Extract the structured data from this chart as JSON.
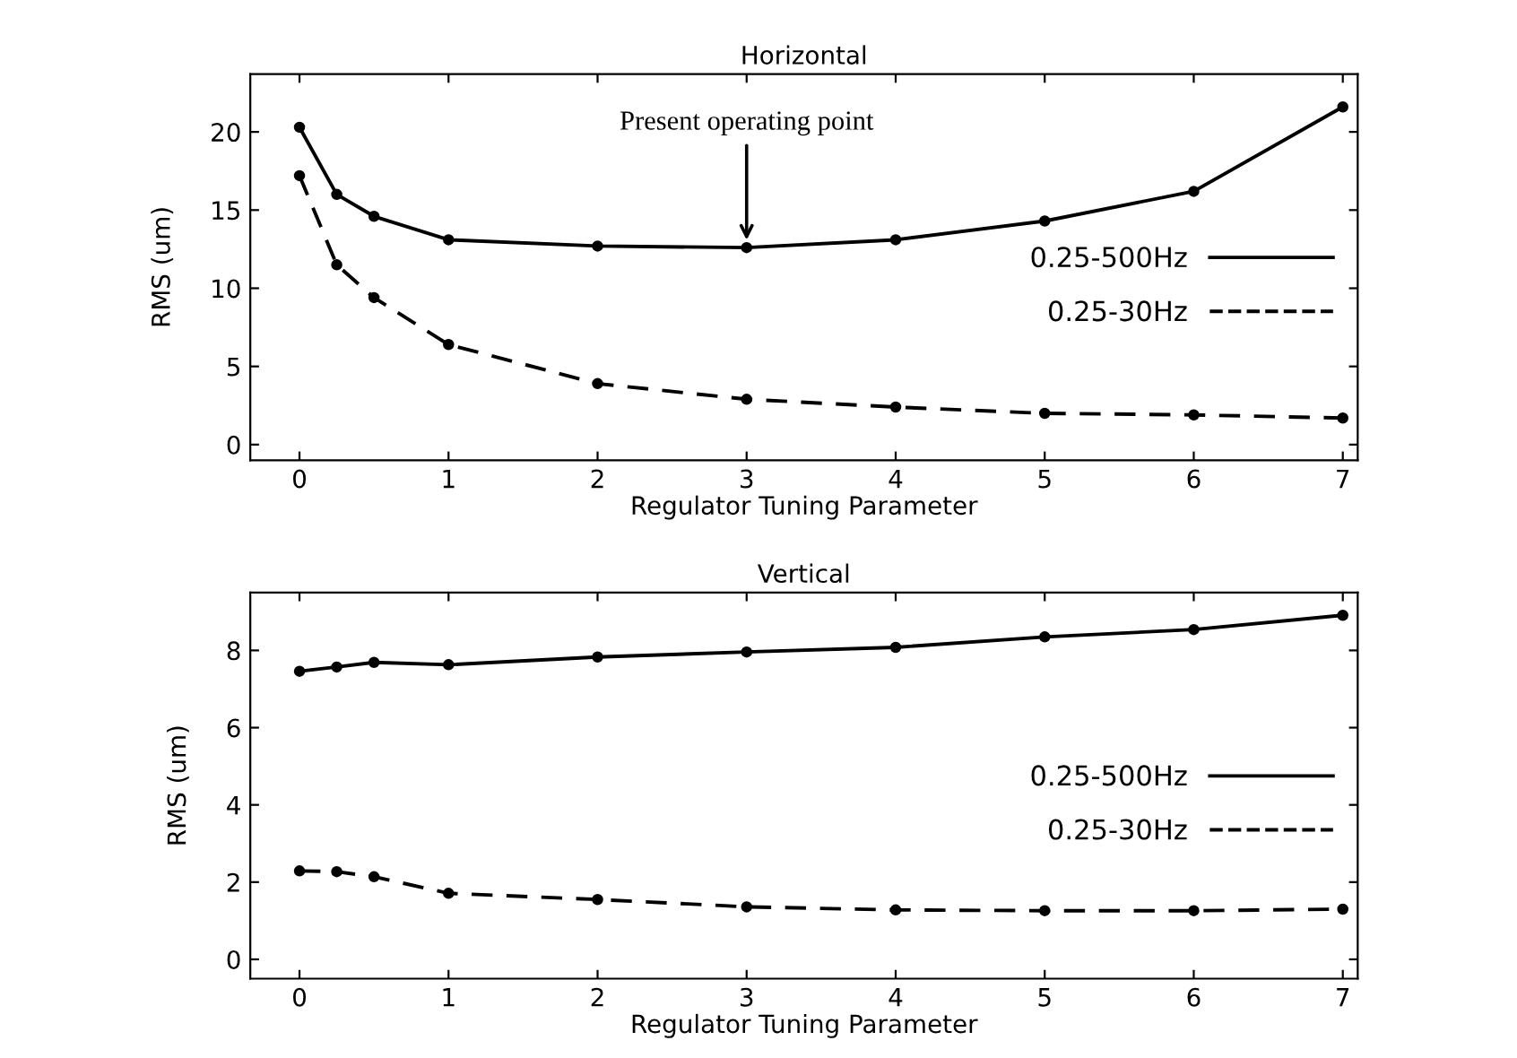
{
  "chart_data": [
    {
      "type": "line",
      "title": "Horizontal",
      "xlabel": "Regulator Tuning Parameter",
      "ylabel": "RMS (um)",
      "x": [
        0,
        0.25,
        0.5,
        1,
        2,
        3,
        4,
        5,
        6,
        7
      ],
      "xlim": [
        -0.33,
        7.1
      ],
      "xticks": [
        0,
        1,
        2,
        3,
        4,
        5,
        6,
        7
      ],
      "ylim": [
        -1,
        23.7
      ],
      "yticks": [
        0,
        5,
        10,
        15,
        20
      ],
      "marker": "circle",
      "legend": "right",
      "grid": false,
      "series": [
        {
          "name": "0.25-500Hz",
          "color": "#000000",
          "line_style": "solid",
          "values": [
            20.3,
            16.0,
            14.6,
            13.1,
            12.7,
            12.6,
            13.1,
            14.3,
            16.2,
            21.6
          ]
        },
        {
          "name": "0.25-30Hz",
          "color": "#000000",
          "line_style": "dashed",
          "values": [
            17.2,
            11.5,
            9.4,
            6.4,
            3.9,
            2.9,
            2.4,
            2.0,
            1.9,
            1.7
          ]
        }
      ],
      "annotations": [
        {
          "text": "Present operating point",
          "x": 3,
          "y": 12.6
        }
      ]
    },
    {
      "type": "line",
      "title": "Vertical",
      "xlabel": "Regulator Tuning Parameter",
      "ylabel": "RMS (um)",
      "x": [
        0,
        0.25,
        0.5,
        1,
        2,
        3,
        4,
        5,
        6,
        7
      ],
      "xlim": [
        -0.33,
        7.1
      ],
      "xticks": [
        0,
        1,
        2,
        3,
        4,
        5,
        6,
        7
      ],
      "ylim": [
        -0.5,
        9.5
      ],
      "yticks": [
        0,
        2,
        4,
        6,
        8
      ],
      "marker": "circle",
      "legend": "right",
      "grid": false,
      "series": [
        {
          "name": "0.25-500Hz",
          "color": "#000000",
          "line_style": "solid",
          "values": [
            7.46,
            7.57,
            7.69,
            7.63,
            7.83,
            7.96,
            8.08,
            8.35,
            8.54,
            8.91
          ]
        },
        {
          "name": "0.25-30Hz",
          "color": "#000000",
          "line_style": "dashed",
          "values": [
            2.29,
            2.27,
            2.14,
            1.71,
            1.55,
            1.36,
            1.28,
            1.26,
            1.26,
            1.3
          ]
        }
      ]
    }
  ]
}
